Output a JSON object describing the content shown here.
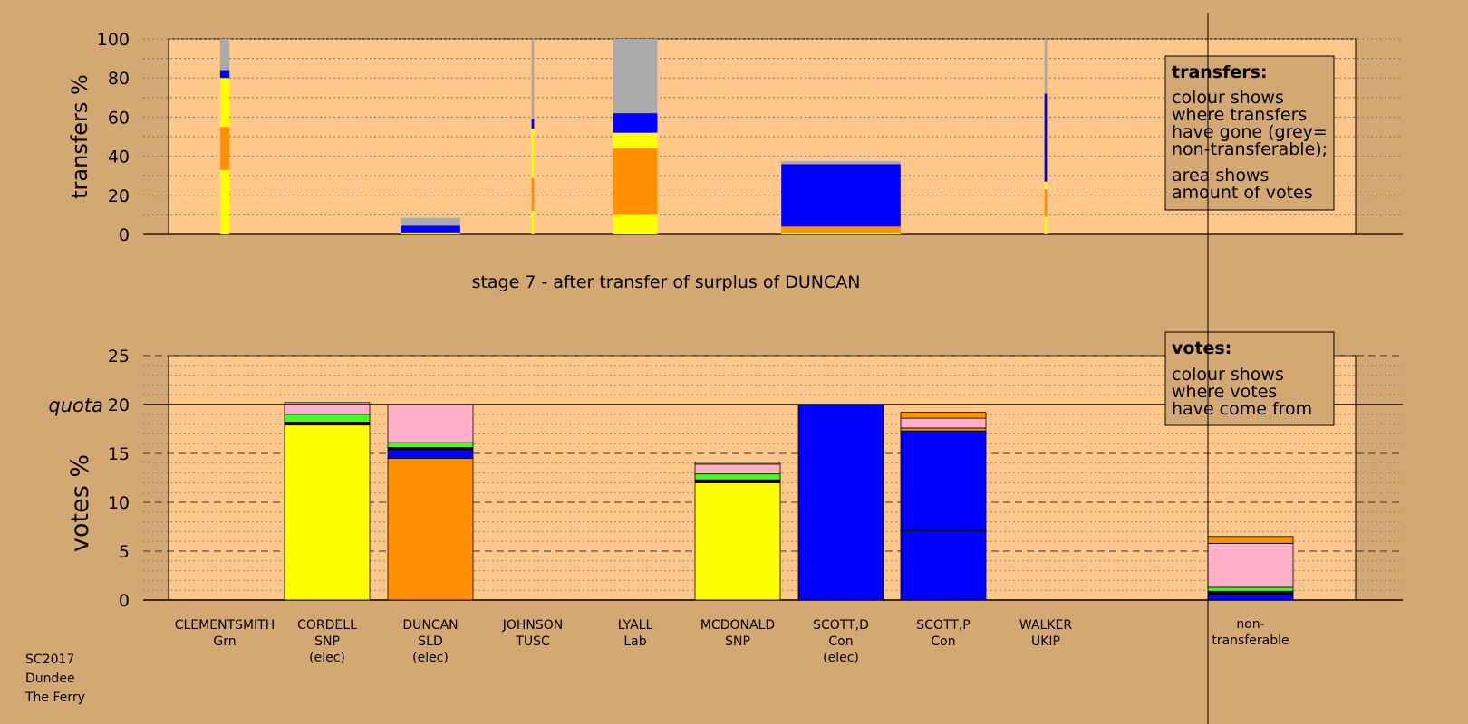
{
  "footer": [
    "SC2017",
    "Dundee",
    "The Ferry"
  ],
  "stage_label": "stage 7 - after transfer of surplus of DUNCAN",
  "colors": {
    "panel": "#ffc88a",
    "page": "#d4a872",
    "yellow": "#ffff00",
    "orange": "#ff9000",
    "blue": "#0000ff",
    "grey": "#aaaaaa",
    "green": "#44ff22",
    "pink": "#ffb0c8",
    "black": "#000000"
  },
  "legends": {
    "transfers": {
      "title": "transfers:",
      "lines1": [
        "colour shows",
        "where transfers",
        "have gone (grey=",
        "non-transferable);"
      ],
      "lines2": [
        "area shows",
        "amount of votes"
      ]
    },
    "votes": {
      "title": "votes:",
      "lines": [
        "colour shows",
        "where votes",
        "have come from"
      ]
    }
  },
  "chart_data": [
    {
      "type": "bar",
      "name": "transfers",
      "ylabel": "transfers %",
      "ylim": [
        0,
        100
      ],
      "yticks": [
        0,
        20,
        40,
        60,
        80,
        100
      ],
      "grid": "dotted",
      "columns": [
        {
          "x": 248,
          "width": 0.11,
          "segments": [
            [
              "yellow",
              33
            ],
            [
              "orange",
              22
            ],
            [
              "yellow",
              25
            ],
            [
              "blue",
              4
            ],
            [
              "grey",
              16
            ]
          ]
        },
        {
          "x": 475,
          "width": 0.7,
          "segments": [
            [
              "yellow",
              1
            ],
            [
              "blue",
              3.5
            ],
            [
              "grey",
              4
            ]
          ]
        },
        {
          "x": 588,
          "width": 0.03,
          "segments": [
            [
              "yellow",
              12
            ],
            [
              "orange",
              17
            ],
            [
              "yellow",
              25
            ],
            [
              "blue",
              5
            ],
            [
              "grey",
              41
            ]
          ]
        },
        {
          "x": 701,
          "width": 0.52,
          "segments": [
            [
              "yellow",
              10
            ],
            [
              "orange",
              34
            ],
            [
              "yellow",
              8
            ],
            [
              "blue",
              10
            ],
            [
              "grey",
              38
            ]
          ]
        },
        {
          "x": 928,
          "width": 1.4,
          "segments": [
            [
              "yellow",
              1
            ],
            [
              "orange",
              3
            ],
            [
              "blue",
              32
            ],
            [
              "grey",
              1.5
            ]
          ]
        },
        {
          "x": 1154,
          "width": 0.03,
          "segments": [
            [
              "yellow",
              9
            ],
            [
              "orange",
              14
            ],
            [
              "yellow",
              4
            ],
            [
              "blue",
              45
            ],
            [
              "grey",
              28
            ]
          ]
        }
      ]
    },
    {
      "type": "bar",
      "name": "votes",
      "ylabel": "votes %",
      "ylim": [
        0,
        25
      ],
      "yticks": [
        0,
        5,
        10,
        15,
        20,
        25
      ],
      "quota": 20,
      "quota_label": "quota",
      "categories": [
        [
          "CLEMENTSMITH",
          "Grn",
          ""
        ],
        [
          "CORDELL",
          "SNP",
          "(elec)"
        ],
        [
          "DUNCAN",
          "SLD",
          "(elec)"
        ],
        [
          "JOHNSON",
          "TUSC",
          ""
        ],
        [
          "LYALL",
          "Lab",
          ""
        ],
        [
          "MCDONALD",
          "SNP",
          ""
        ],
        [
          "SCOTT,D",
          "Con",
          "(elec)"
        ],
        [
          "SCOTT,P",
          "Con",
          ""
        ],
        [
          "WALKER",
          "UKIP",
          ""
        ]
      ],
      "bars": [
        {
          "x": 248,
          "segments": []
        },
        {
          "x": 361,
          "segments": [
            [
              "yellow",
              17.9
            ],
            [
              "black",
              0.3
            ],
            [
              "green",
              0.8
            ],
            [
              "pink",
              1.2
            ]
          ]
        },
        {
          "x": 475,
          "segments": [
            [
              "orange",
              14.5
            ],
            [
              "blue",
              0.9
            ],
            [
              "black",
              0.2
            ],
            [
              "green",
              0.5
            ],
            [
              "pink",
              3.9
            ]
          ]
        },
        {
          "x": 588,
          "segments": []
        },
        {
          "x": 701,
          "segments": []
        },
        {
          "x": 814,
          "segments": [
            [
              "yellow",
              12.0
            ],
            [
              "black",
              0.3
            ],
            [
              "green",
              0.6
            ],
            [
              "pink",
              1.0
            ],
            [
              "orange",
              0.2
            ]
          ]
        },
        {
          "x": 928,
          "segments": [
            [
              "blue",
              20.0
            ]
          ]
        },
        {
          "x": 1041,
          "segments": [
            [
              "blue",
              7.1
            ],
            [
              "blue",
              10.2
            ],
            [
              "orange",
              0.3
            ],
            [
              "pink",
              1.0
            ],
            [
              "orange",
              0.6
            ]
          ]
        },
        {
          "x": 1154,
          "segments": []
        }
      ],
      "nontransferable": {
        "label": [
          "non-",
          "transferable"
        ],
        "x": 1380,
        "segments": [
          [
            "blue",
            0.6
          ],
          [
            "black",
            0.3
          ],
          [
            "green",
            0.4
          ],
          [
            "pink",
            4.5
          ],
          [
            "orange",
            0.7
          ]
        ]
      }
    }
  ]
}
